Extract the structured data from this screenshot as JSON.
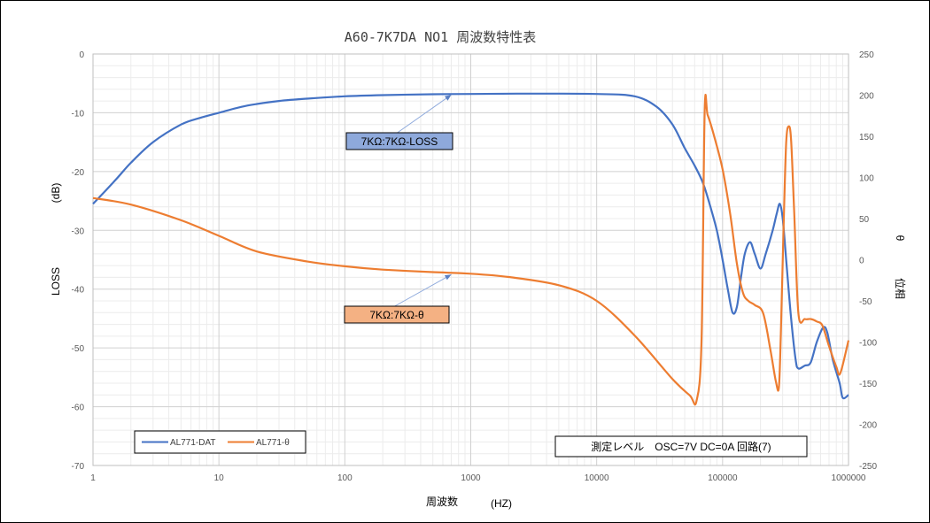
{
  "chart_data": {
    "type": "line",
    "title": "A60-7K7DA NO1 周波数特性表",
    "xlabel": "周波数",
    "xlabel_unit": "(HZ)",
    "ylabel_left": "LOSS",
    "ylabel_left_unit": "(dB)",
    "ylabel_right": "位相",
    "ylabel_right_symbol": "θ",
    "x_scale": "log",
    "xlim": [
      1,
      1000000
    ],
    "ylim_left": [
      -70,
      0
    ],
    "ylim_right": [
      -250,
      250
    ],
    "x_ticks": [
      "1",
      "10",
      "100",
      "1000",
      "10000",
      "100000",
      "1000000"
    ],
    "y_left_ticks": [
      "0",
      "-10",
      "-20",
      "-30",
      "-40",
      "-50",
      "-60",
      "-70"
    ],
    "y_right_ticks": [
      "250",
      "200",
      "150",
      "100",
      "50",
      "0",
      "-50",
      "-100",
      "-150",
      "-200",
      "-250"
    ],
    "grid": true,
    "legend_position": "bottom-left",
    "series": [
      {
        "name": "AL771-DAT",
        "axis": "left",
        "color": "#4472c4",
        "points": [
          [
            1,
            -25.5
          ],
          [
            1.5,
            -21.5
          ],
          [
            2,
            -18.5
          ],
          [
            3,
            -15
          ],
          [
            5,
            -12
          ],
          [
            7,
            -10.9
          ],
          [
            10,
            -10
          ],
          [
            15,
            -9
          ],
          [
            20,
            -8.5
          ],
          [
            30,
            -8
          ],
          [
            50,
            -7.6
          ],
          [
            100,
            -7.2
          ],
          [
            200,
            -7
          ],
          [
            500,
            -6.85
          ],
          [
            1000,
            -6.8
          ],
          [
            3000,
            -6.75
          ],
          [
            10000,
            -6.8
          ],
          [
            20000,
            -7.2
          ],
          [
            30000,
            -9
          ],
          [
            40000,
            -12
          ],
          [
            50000,
            -16
          ],
          [
            60000,
            -19
          ],
          [
            70000,
            -22
          ],
          [
            80000,
            -26
          ],
          [
            90000,
            -30
          ],
          [
            100000,
            -35
          ],
          [
            110000,
            -40
          ],
          [
            120000,
            -44
          ],
          [
            130000,
            -43
          ],
          [
            140000,
            -38
          ],
          [
            150000,
            -34
          ],
          [
            165000,
            -32
          ],
          [
            180000,
            -34
          ],
          [
            200000,
            -36.5
          ],
          [
            220000,
            -34
          ],
          [
            250000,
            -30
          ],
          [
            270000,
            -27
          ],
          [
            285000,
            -25.5
          ],
          [
            300000,
            -28
          ],
          [
            320000,
            -35
          ],
          [
            350000,
            -45
          ],
          [
            380000,
            -52
          ],
          [
            400000,
            -53.5
          ],
          [
            450000,
            -53
          ],
          [
            500000,
            -52.5
          ],
          [
            560000,
            -49
          ],
          [
            630000,
            -46.5
          ],
          [
            680000,
            -47.5
          ],
          [
            750000,
            -52
          ],
          [
            850000,
            -56
          ],
          [
            900000,
            -58.5
          ],
          [
            1000000,
            -58
          ]
        ]
      },
      {
        "name": "AL771-θ",
        "axis": "right",
        "color": "#ed7d31",
        "points": [
          [
            1,
            75
          ],
          [
            2,
            67
          ],
          [
            5,
            48
          ],
          [
            10,
            29
          ],
          [
            20,
            10
          ],
          [
            50,
            -2
          ],
          [
            100,
            -8
          ],
          [
            200,
            -12
          ],
          [
            500,
            -15
          ],
          [
            1000,
            -17
          ],
          [
            2000,
            -21
          ],
          [
            5000,
            -31
          ],
          [
            10000,
            -50
          ],
          [
            20000,
            -92
          ],
          [
            40000,
            -145
          ],
          [
            55000,
            -165
          ],
          [
            62000,
            -172
          ],
          [
            68000,
            -100
          ],
          [
            72000,
            180
          ],
          [
            76000,
            176
          ],
          [
            85000,
            152
          ],
          [
            100000,
            110
          ],
          [
            115000,
            55
          ],
          [
            130000,
            -5
          ],
          [
            145000,
            -40
          ],
          [
            160000,
            -50
          ],
          [
            180000,
            -55
          ],
          [
            210000,
            -65
          ],
          [
            240000,
            -110
          ],
          [
            265000,
            -148
          ],
          [
            280000,
            -155
          ],
          [
            290000,
            -90
          ],
          [
            305000,
            40
          ],
          [
            320000,
            142
          ],
          [
            335000,
            162
          ],
          [
            350000,
            145
          ],
          [
            370000,
            60
          ],
          [
            400000,
            -65
          ],
          [
            450000,
            -72
          ],
          [
            500000,
            -72
          ],
          [
            560000,
            -75
          ],
          [
            620000,
            -80
          ],
          [
            700000,
            -105
          ],
          [
            800000,
            -130
          ],
          [
            860000,
            -138
          ],
          [
            1000000,
            -98
          ]
        ]
      }
    ],
    "annotations": [
      {
        "text": "7KΩ:7KΩ-LOSS",
        "series": "AL771-DAT",
        "x": 700,
        "y": -6.8,
        "fill": "#8ea9db"
      },
      {
        "text": "7KΩ:7KΩ-θ",
        "series": "AL771-θ",
        "x": 700,
        "y": -17,
        "fill": "#f4b183"
      }
    ],
    "info_box": "測定レベル　OSC=7V DC=0A 回路(7)"
  }
}
